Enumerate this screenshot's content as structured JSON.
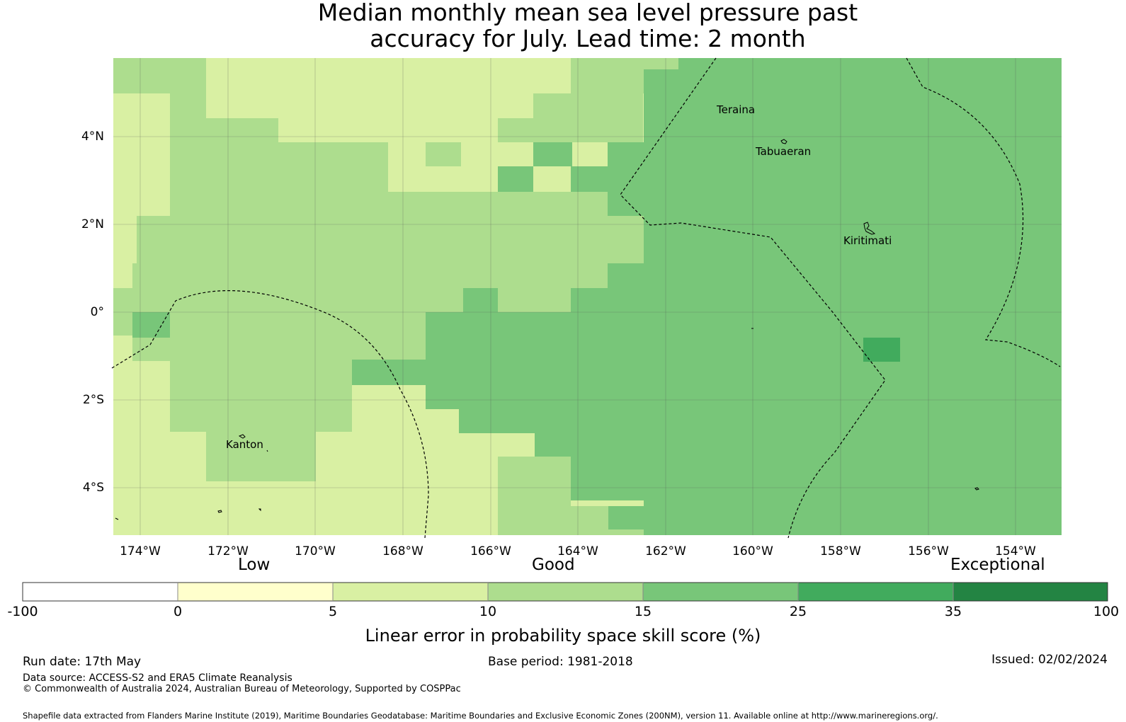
{
  "title_line1": "Median monthly mean sea level pressure past",
  "title_line2": "accuracy for July. Lead time: 2 month",
  "map": {
    "lon_range": [
      -174.6,
      -153.0
    ],
    "lat_range": [
      -5.15,
      5.75
    ],
    "lon_ticks": [
      "174°W",
      "172°W",
      "170°W",
      "168°W",
      "166°W",
      "164°W",
      "162°W",
      "160°W",
      "158°W",
      "156°W",
      "154°W"
    ],
    "lat_ticks": [
      "4°N",
      "2°N",
      "0°",
      "2°S",
      "4°S"
    ],
    "places": [
      "Teraina",
      "Tabuaeran",
      "Kiritimati",
      "Kanton"
    ],
    "category_colors": [
      "#ffffff",
      "#ffffcc",
      "#d9f0a3",
      "#addd8e",
      "#78c679",
      "#41ab5d",
      "#238443"
    ]
  },
  "colorbar": {
    "group_labels": [
      "Low",
      "Good",
      "Exceptional"
    ],
    "bounds": [
      "-100",
      "0",
      "5",
      "10",
      "15",
      "25",
      "35",
      "100"
    ],
    "title": "Linear error in probability space skill score (%)"
  },
  "footer": {
    "run_date": "Run date: 17th May",
    "base_period": "Base period: 1981-2018",
    "issued": "Issued: 02/02/2024",
    "data_source": "Data source: ACCESS-S2 and ERA5 Climate Reanalysis",
    "copyright": "© Commonwealth of Australia 2024, Australian Bureau of Meteorology, Supported by COSPPac",
    "shapefile": "Shapefile data extracted from Flanders Marine Institute (2019), Maritime Boundaries Geodatabase: Maritime Boundaries and Exclusive Economic Zones (200NM), version 11. Available online at http://www.marineregions.org/."
  }
}
